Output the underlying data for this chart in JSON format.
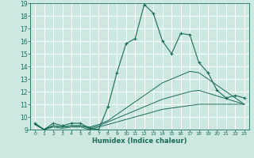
{
  "xlabel": "Humidex (Indice chaleur)",
  "bg_color": "#cde8e0",
  "line_color": "#1a6b5a",
  "grid_color": "#b8ddd5",
  "xlim": [
    -0.5,
    23.5
  ],
  "ylim": [
    9,
    19
  ],
  "yticks": [
    9,
    10,
    11,
    12,
    13,
    14,
    15,
    16,
    17,
    18,
    19
  ],
  "xticks": [
    0,
    1,
    2,
    3,
    4,
    5,
    6,
    7,
    8,
    9,
    10,
    11,
    12,
    13,
    14,
    15,
    16,
    17,
    18,
    19,
    20,
    21,
    22,
    23
  ],
  "main_curve": {
    "x": [
      0,
      1,
      2,
      3,
      4,
      5,
      6,
      7,
      8,
      9,
      10,
      11,
      12,
      13,
      14,
      15,
      16,
      17,
      18,
      19,
      20,
      21,
      22,
      23
    ],
    "y": [
      9.5,
      9.0,
      9.5,
      9.3,
      9.5,
      9.5,
      9.1,
      9.0,
      10.8,
      13.5,
      15.8,
      16.2,
      18.9,
      18.2,
      16.0,
      15.0,
      16.6,
      16.5,
      14.3,
      13.5,
      12.1,
      11.5,
      11.7,
      11.5
    ]
  },
  "ref_curves": [
    {
      "x": [
        0,
        1,
        2,
        3,
        4,
        5,
        6,
        7,
        8,
        9,
        10,
        11,
        12,
        13,
        14,
        15,
        16,
        17,
        18,
        23
      ],
      "y": [
        9.4,
        9.0,
        9.3,
        9.2,
        9.3,
        9.3,
        9.2,
        9.4,
        9.7,
        10.2,
        10.7,
        11.2,
        11.7,
        12.2,
        12.7,
        13.0,
        13.3,
        13.6,
        13.5,
        11.0
      ]
    },
    {
      "x": [
        0,
        1,
        2,
        3,
        4,
        5,
        6,
        7,
        8,
        9,
        10,
        11,
        12,
        13,
        14,
        15,
        16,
        17,
        18,
        23
      ],
      "y": [
        9.4,
        9.0,
        9.3,
        9.2,
        9.3,
        9.3,
        9.1,
        9.3,
        9.6,
        9.9,
        10.2,
        10.5,
        10.8,
        11.1,
        11.4,
        11.6,
        11.8,
        12.0,
        12.1,
        11.0
      ]
    },
    {
      "x": [
        0,
        1,
        2,
        3,
        4,
        5,
        6,
        7,
        8,
        9,
        10,
        11,
        12,
        13,
        14,
        15,
        16,
        17,
        18,
        23
      ],
      "y": [
        9.4,
        9.0,
        9.2,
        9.1,
        9.2,
        9.2,
        9.0,
        9.2,
        9.4,
        9.6,
        9.8,
        10.0,
        10.2,
        10.4,
        10.6,
        10.7,
        10.8,
        10.9,
        11.0,
        11.0
      ]
    }
  ]
}
